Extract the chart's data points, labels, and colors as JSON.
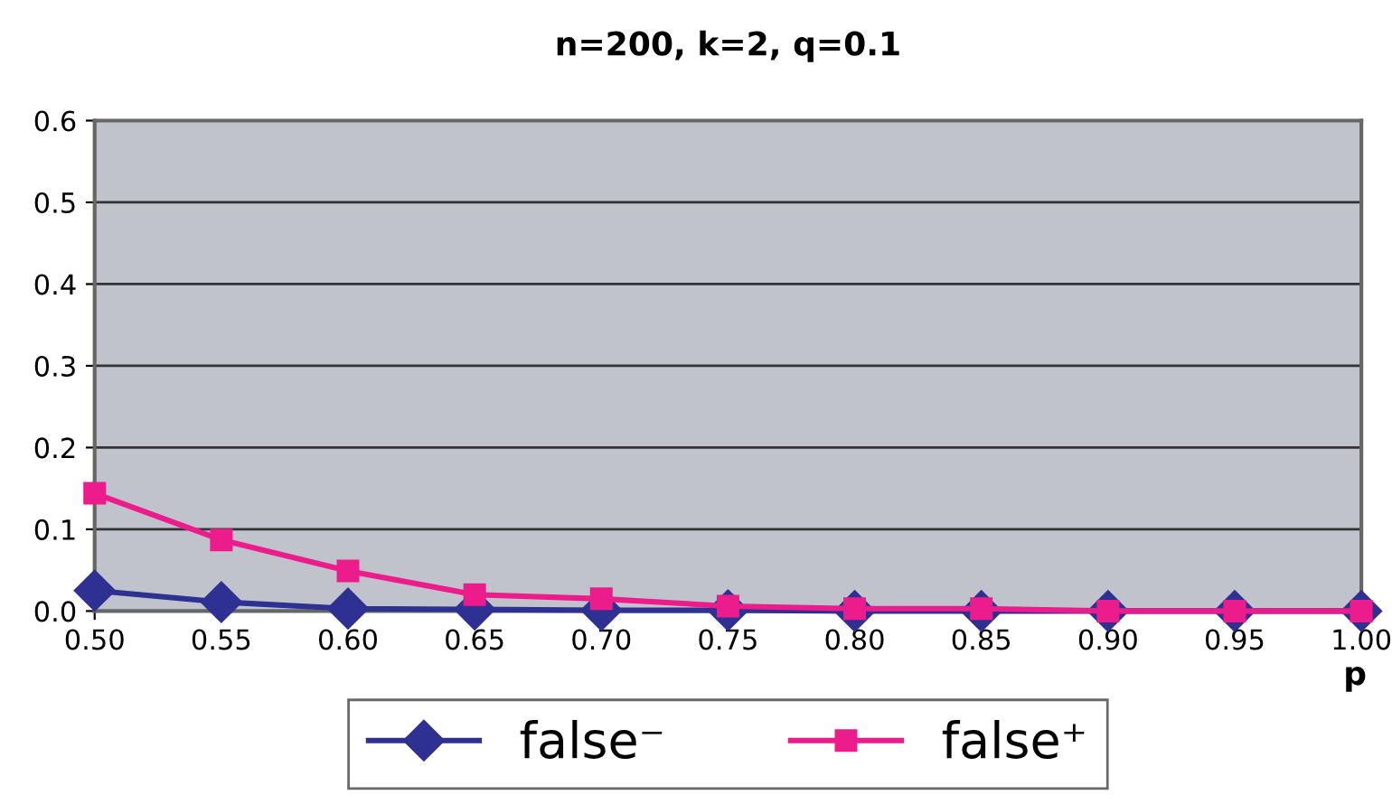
{
  "chart_data": {
    "type": "line",
    "title": "n=200, k=2, q=0.1",
    "xlabel": "p",
    "x": [
      0.5,
      0.55,
      0.6,
      0.65,
      0.7,
      0.75,
      0.8,
      0.85,
      0.9,
      0.95,
      1.0
    ],
    "series": [
      {
        "name": "false⁻",
        "color": "#2e3192",
        "marker": "diamond",
        "values": [
          0.025,
          0.011,
          0.003,
          0.002,
          0.001,
          0.001,
          0,
          0,
          0,
          0,
          0
        ]
      },
      {
        "name": "false⁺",
        "color": "#ec1c8c",
        "marker": "square",
        "values": [
          0.144,
          0.087,
          0.049,
          0.02,
          0.015,
          0.006,
          0.003,
          0.003,
          0,
          0,
          0
        ]
      }
    ],
    "xlim": [
      0.5,
      1.0
    ],
    "xticks": [
      {
        "value": 0.5,
        "label": "0.50"
      },
      {
        "value": 0.55,
        "label": "0.55"
      },
      {
        "value": 0.6,
        "label": "0.60"
      },
      {
        "value": 0.65,
        "label": "0.65"
      },
      {
        "value": 0.7,
        "label": "0.70"
      },
      {
        "value": 0.75,
        "label": "0.75"
      },
      {
        "value": 0.8,
        "label": "0.80"
      },
      {
        "value": 0.85,
        "label": "0.85"
      },
      {
        "value": 0.9,
        "label": "0.90"
      },
      {
        "value": 0.95,
        "label": "0.95"
      },
      {
        "value": 1.0,
        "label": "1.00"
      }
    ],
    "ylim": [
      0,
      0.6
    ],
    "yticks": [
      {
        "value": 0,
        "label": "0.0"
      },
      {
        "value": 0.1,
        "label": "0.1"
      },
      {
        "value": 0.2,
        "label": "0.2"
      },
      {
        "value": 0.3,
        "label": "0.3"
      },
      {
        "value": 0.4,
        "label": "0.4"
      },
      {
        "value": 0.5,
        "label": "0.5"
      },
      {
        "value": 0.6,
        "label": "0.6"
      }
    ],
    "grid": "y",
    "legend": "bottom"
  }
}
